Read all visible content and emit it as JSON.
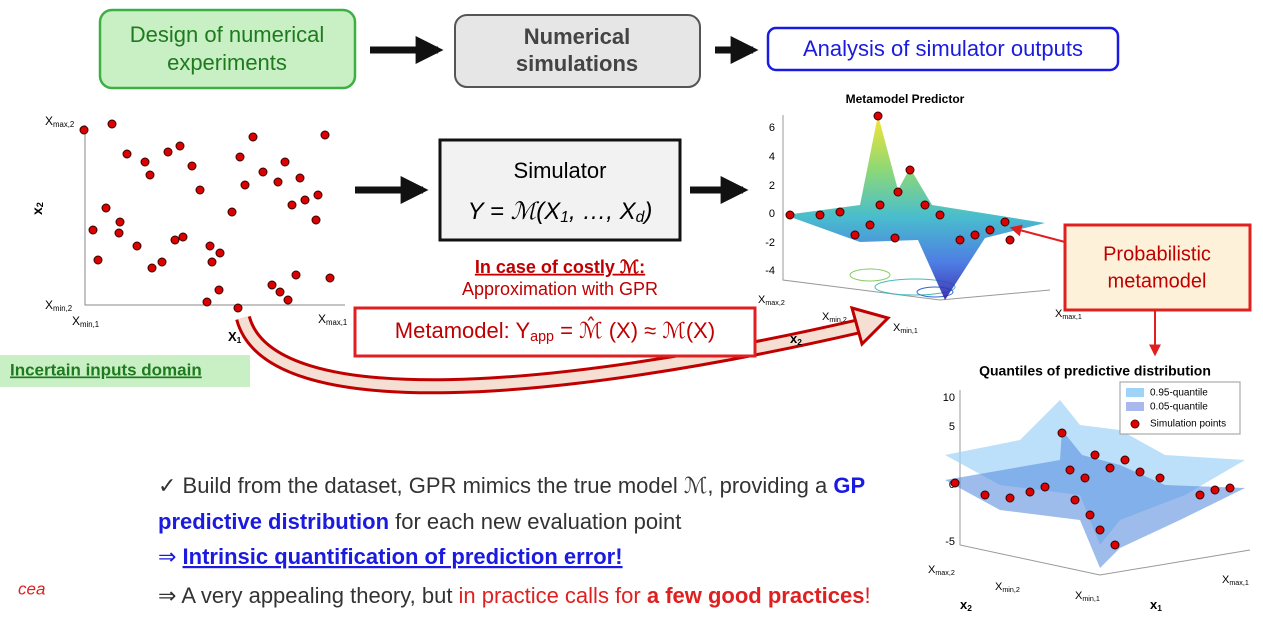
{
  "flow": {
    "design": [
      "Design of numerical",
      "experiments"
    ],
    "simulations": [
      "Numerical",
      "simulations"
    ],
    "analysis": "Analysis of simulator outputs"
  },
  "inputs_plot": {
    "y_max": [
      "X",
      "max,2"
    ],
    "y_min": [
      "X",
      "min,2"
    ],
    "y_label": [
      "x",
      "2"
    ],
    "x_min": [
      "X",
      "min,1"
    ],
    "x_max": [
      "X",
      "max,1"
    ],
    "x_label": [
      "X",
      "1"
    ]
  },
  "domain_label": "Incertain inputs domain",
  "simulator": {
    "title": "Simulator",
    "formula": [
      "Y = ℳ(X",
      "1",
      ", …, X",
      "d",
      ")"
    ]
  },
  "costly": {
    "title": "In case of costly ℳ:",
    "text": "Approximation with GPR"
  },
  "metamodel": [
    "Metamodel: Y",
    "app",
    " = ℳ̂ (X) ≈ ℳ(X)"
  ],
  "predictor_plot": {
    "title": "Metamodel Predictor",
    "zticks": [
      "6",
      "4",
      "2",
      "0",
      "-2",
      "-4"
    ],
    "x2_max": [
      "X",
      "max,2"
    ],
    "x2_min": [
      "X",
      "min,2"
    ],
    "x1_min": [
      "X",
      "min,1"
    ],
    "x1_max": [
      "X",
      "max,1"
    ],
    "x2_label": [
      "x",
      "2"
    ]
  },
  "callout": [
    "Probabilistic",
    "metamodel"
  ],
  "quantile_plot": {
    "title": "Quantiles of predictive distribution",
    "legend": [
      "0.95-quantile",
      "0.05-quantile",
      "Simulation points"
    ],
    "zticks": [
      "10",
      "5",
      "0",
      "-5"
    ],
    "x2_max": [
      "X",
      "max,2"
    ],
    "x2_min": [
      "X",
      "min,2"
    ],
    "x1_min": [
      "X",
      "min,1"
    ],
    "x1_max": [
      "X",
      "max,1"
    ],
    "x2_label": [
      "x",
      "2"
    ],
    "x1_label": [
      "x",
      "1"
    ]
  },
  "bullets": {
    "line1": [
      "✓  Build from the dataset, GPR mimics the true model ℳ, providing a ",
      "GP"
    ],
    "line2": [
      "predictive distribution",
      " for each new evaluation point"
    ],
    "line3": [
      "⇒ ",
      "Intrinsic quantification of prediction error!"
    ],
    "line4": [
      "⇒ A very appealing theory, but ",
      "in practice calls for ",
      "a few good practices",
      "!"
    ]
  },
  "logo": "cea"
}
